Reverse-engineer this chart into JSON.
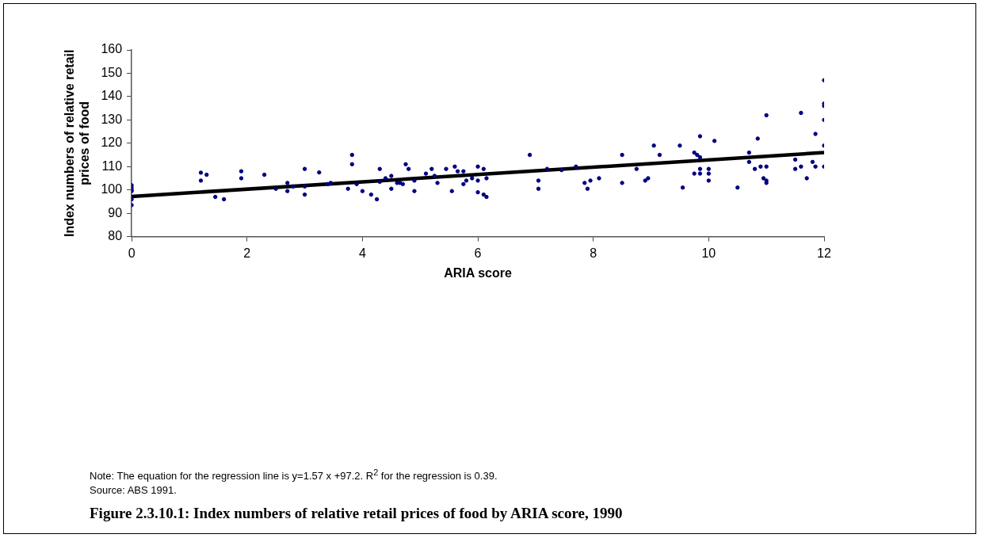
{
  "chart_data": {
    "type": "scatter",
    "title": "Figure 2.3.10.1: Index numbers of relative retail prices of food by ARIA score, 1990",
    "xlabel": "ARIA score",
    "ylabel": "Index numbers of relative retail prices of food",
    "annotations": [
      "Note: The equation for the regression line is y=1.57 x +97.2.  R$^{2}$ for the regression is 0.39.",
      "Source: ABS 1991."
    ],
    "xlim": [
      0,
      12
    ],
    "xticks": [
      0,
      2,
      4,
      6,
      8,
      10,
      12
    ],
    "ylim": [
      80,
      160
    ],
    "yticks": [
      80,
      90,
      100,
      110,
      120,
      130,
      140,
      150,
      160
    ],
    "grid": false,
    "legend": false,
    "marker": "circle",
    "series": [
      {
        "type": "scatter",
        "color": "#000080",
        "x": [
          0,
          0,
          0,
          0,
          0,
          0,
          1.2,
          1.2,
          1.3,
          1.45,
          1.6,
          1.9,
          1.9,
          2.3,
          2.5,
          2.7,
          2.7,
          2.8,
          3.0,
          3.0,
          3.0,
          3.25,
          3.4,
          3.45,
          3.75,
          3.82,
          3.82,
          3.9,
          4.0,
          4.15,
          4.25,
          4.3,
          4.3,
          4.4,
          4.5,
          4.5,
          4.6,
          4.65,
          4.7,
          4.75,
          4.8,
          4.9,
          4.9,
          5.1,
          5.2,
          5.25,
          5.3,
          5.45,
          5.55,
          5.6,
          5.65,
          5.75,
          5.75,
          5.8,
          5.9,
          6.0,
          6.0,
          6.0,
          6.1,
          6.1,
          6.15,
          6.15,
          6.9,
          7.05,
          7.05,
          7.2,
          7.45,
          7.7,
          7.85,
          7.9,
          7.95,
          8.1,
          8.5,
          8.5,
          8.75,
          8.9,
          8.95,
          9.05,
          9.15,
          9.5,
          9.55,
          9.75,
          9.75,
          9.8,
          9.85,
          9.85,
          9.85,
          9.85,
          10.0,
          10.0,
          10.0,
          10.1,
          10.5,
          10.7,
          10.7,
          10.8,
          10.85,
          10.9,
          10.95,
          11.0,
          11.0,
          11.0,
          11.0,
          11.5,
          11.5,
          11.6,
          11.6,
          11.7,
          11.8,
          11.85,
          11.85,
          12,
          12,
          12,
          12,
          12,
          12
        ],
        "values": [
          93.5,
          96,
          99.5,
          100,
          101,
          102,
          107.4,
          104,
          106.5,
          97,
          96,
          108,
          105,
          106.5,
          100.5,
          99.5,
          103,
          101.5,
          109,
          98,
          101.5,
          107.5,
          102.5,
          103,
          100.5,
          115,
          111,
          102.5,
          99.5,
          98,
          96,
          109,
          103.5,
          105,
          106,
          100.5,
          103,
          103,
          102.5,
          111,
          109,
          104,
          99.5,
          107,
          109,
          106,
          103,
          109,
          99.5,
          110,
          108,
          102.5,
          108,
          104,
          105,
          110,
          99,
          104,
          109,
          98,
          97,
          105,
          115,
          104,
          100.5,
          109,
          108.5,
          110,
          103,
          100.5,
          104,
          105,
          115,
          103,
          109,
          104,
          105,
          119,
          115,
          119,
          101,
          116,
          107,
          115,
          114,
          123,
          109,
          107,
          109,
          104,
          107,
          121,
          101,
          116,
          112,
          109,
          122,
          110,
          105,
          132,
          104,
          103,
          110,
          113,
          109,
          133,
          110,
          105,
          112,
          124,
          110,
          147,
          137,
          136,
          130,
          119,
          110
        ]
      },
      {
        "type": "line",
        "color": "#000000",
        "marker": "none",
        "line_style": "solid",
        "x": [
          0,
          12
        ],
        "values": [
          97.2,
          116
        ]
      }
    ]
  }
}
